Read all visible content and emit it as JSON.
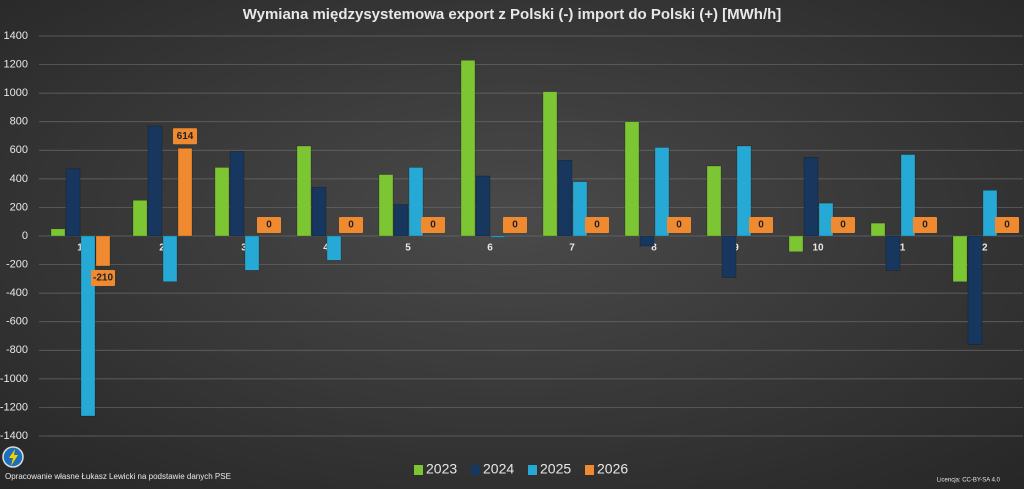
{
  "chart_data": {
    "type": "bar",
    "title": "Wymiana międzysystemowa export z Polski (-) import do Polski (+) [MWh/h]",
    "categories": [
      "1",
      "2",
      "3",
      "4",
      "5",
      "6",
      "7",
      "8",
      "9",
      "10",
      "11",
      "12"
    ],
    "series": [
      {
        "name": "2023",
        "color": "#7cc633",
        "values": [
          50,
          250,
          480,
          630,
          430,
          1230,
          1010,
          800,
          490,
          -110,
          90,
          -320
        ]
      },
      {
        "name": "2024",
        "color": "#17375e",
        "values": [
          470,
          770,
          590,
          340,
          220,
          420,
          530,
          -70,
          -290,
          550,
          -240,
          -760
        ]
      },
      {
        "name": "2025",
        "color": "#27a9d6",
        "values": [
          -1260,
          -320,
          -240,
          -170,
          480,
          -10,
          380,
          620,
          630,
          230,
          570,
          320
        ]
      },
      {
        "name": "2026",
        "color": "#f08a30",
        "values": [
          -210,
          614,
          0,
          0,
          0,
          0,
          0,
          0,
          0,
          0,
          0,
          0
        ],
        "show_labels": true
      }
    ],
    "ylim": [
      -1400,
      1400
    ],
    "yticks": [
      -1400,
      -1200,
      -1000,
      -800,
      -600,
      -400,
      -200,
      0,
      200,
      400,
      600,
      800,
      1000,
      1200,
      1400
    ],
    "grid": true,
    "legend": "bottom",
    "source": "Opracowanie własne Łukasz Lewicki na podstawie danych PSE",
    "license": "Licencja: CC-BY-SA 4.0"
  }
}
